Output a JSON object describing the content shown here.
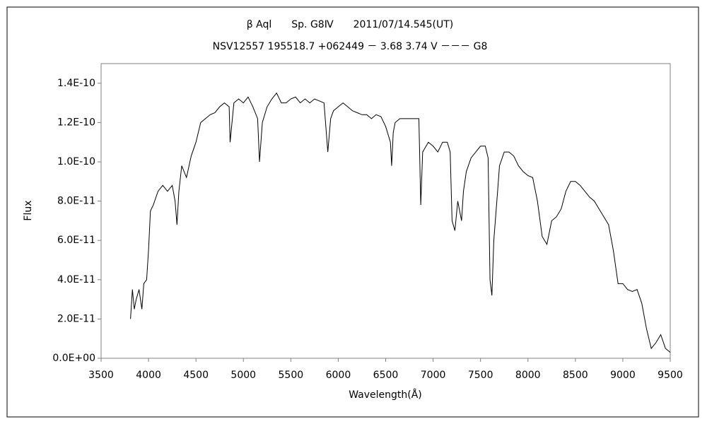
{
  "chart_data": {
    "type": "line",
    "title": "β Aql　　Sp. G8Ⅳ　　2011/07/14.545(UT)",
    "subtitle": "NSV12557 195518.7 +062449 － 3.68 3.74 V －－－ G8",
    "x_label": "Wavelength(Å)",
    "y_label": "Flux",
    "xlim": [
      3500,
      9500
    ],
    "xticks": [
      3500,
      4000,
      4500,
      5000,
      5500,
      6000,
      6500,
      7000,
      7500,
      8000,
      8500,
      9000,
      9500
    ],
    "ylim": [
      0,
      1.5e-10
    ],
    "yticks": [
      {
        "value": 0,
        "label": "0.0E+00"
      },
      {
        "value": 2e-11,
        "label": "2.0E-11"
      },
      {
        "value": 4e-11,
        "label": "4.0E-11"
      },
      {
        "value": 6e-11,
        "label": "6.0E-11"
      },
      {
        "value": 8e-11,
        "label": "8.0E-11"
      },
      {
        "value": 1e-10,
        "label": "1.0E-10"
      },
      {
        "value": 1.2e-10,
        "label": "1.2E-10"
      },
      {
        "value": 1.4e-10,
        "label": "1.4E-10"
      }
    ],
    "grid": false,
    "series": [
      {
        "color": "#000000",
        "x": [
          3810,
          3830,
          3850,
          3870,
          3900,
          3930,
          3950,
          3980,
          4000,
          4020,
          4050,
          4100,
          4150,
          4200,
          4250,
          4280,
          4300,
          4320,
          4350,
          4400,
          4450,
          4500,
          4550,
          4600,
          4650,
          4700,
          4750,
          4800,
          4850,
          4860,
          4900,
          4950,
          5000,
          5050,
          5100,
          5150,
          5170,
          5200,
          5250,
          5300,
          5350,
          5400,
          5450,
          5500,
          5550,
          5600,
          5650,
          5700,
          5750,
          5800,
          5850,
          5890,
          5920,
          5950,
          6000,
          6050,
          6100,
          6150,
          6200,
          6250,
          6300,
          6350,
          6400,
          6450,
          6500,
          6550,
          6563,
          6580,
          6600,
          6650,
          6700,
          6750,
          6800,
          6850,
          6870,
          6890,
          6950,
          7000,
          7050,
          7100,
          7150,
          7180,
          7200,
          7230,
          7260,
          7300,
          7320,
          7350,
          7400,
          7450,
          7500,
          7550,
          7580,
          7600,
          7620,
          7640,
          7680,
          7700,
          7750,
          7800,
          7850,
          7900,
          7950,
          8000,
          8050,
          8100,
          8150,
          8200,
          8250,
          8300,
          8350,
          8400,
          8450,
          8500,
          8550,
          8600,
          8650,
          8700,
          8750,
          8800,
          8850,
          8900,
          8950,
          9000,
          9050,
          9100,
          9150,
          9200,
          9250,
          9300,
          9350,
          9400,
          9450,
          9500
        ],
        "values": [
          2e-11,
          3.5e-11,
          2.5e-11,
          3e-11,
          3.5e-11,
          2.5e-11,
          3.8e-11,
          4e-11,
          5.5e-11,
          7.5e-11,
          7.8e-11,
          8.5e-11,
          8.8e-11,
          8.5e-11,
          8.8e-11,
          8e-11,
          6.8e-11,
          8.5e-11,
          9.8e-11,
          9.2e-11,
          1.03e-10,
          1.1e-10,
          1.2e-10,
          1.22e-10,
          1.24e-10,
          1.25e-10,
          1.28e-10,
          1.3e-10,
          1.28e-10,
          1.1e-10,
          1.3e-10,
          1.32e-10,
          1.3e-10,
          1.33e-10,
          1.28e-10,
          1.22e-10,
          1e-10,
          1.2e-10,
          1.28e-10,
          1.32e-10,
          1.35e-10,
          1.3e-10,
          1.3e-10,
          1.32e-10,
          1.33e-10,
          1.3e-10,
          1.32e-10,
          1.3e-10,
          1.32e-10,
          1.31e-10,
          1.3e-10,
          1.05e-10,
          1.22e-10,
          1.26e-10,
          1.28e-10,
          1.3e-10,
          1.28e-10,
          1.26e-10,
          1.25e-10,
          1.24e-10,
          1.24e-10,
          1.22e-10,
          1.24e-10,
          1.23e-10,
          1.18e-10,
          1.1e-10,
          9.8e-11,
          1.15e-10,
          1.2e-10,
          1.22e-10,
          1.22e-10,
          1.22e-10,
          1.22e-10,
          1.22e-10,
          7.8e-11,
          1.05e-10,
          1.1e-10,
          1.08e-10,
          1.05e-10,
          1.1e-10,
          1.1e-10,
          1.05e-10,
          7e-11,
          6.5e-11,
          8e-11,
          7e-11,
          8.5e-11,
          9.5e-11,
          1.02e-10,
          1.05e-10,
          1.08e-10,
          1.08e-10,
          1.02e-10,
          4e-11,
          3.2e-11,
          6e-11,
          8.5e-11,
          9.8e-11,
          1.05e-10,
          1.05e-10,
          1.03e-10,
          9.8e-11,
          9.5e-11,
          9.3e-11,
          9.2e-11,
          8e-11,
          6.2e-11,
          5.8e-11,
          7e-11,
          7.2e-11,
          7.6e-11,
          8.5e-11,
          9e-11,
          9e-11,
          8.8e-11,
          8.5e-11,
          8.2e-11,
          8e-11,
          7.6e-11,
          7.2e-11,
          6.8e-11,
          5.5e-11,
          3.8e-11,
          3.8e-11,
          3.5e-11,
          3.4e-11,
          3.5e-11,
          2.8e-11,
          1.5e-11,
          5e-12,
          8e-12,
          1.2e-11,
          5e-12,
          3e-12
        ]
      }
    ]
  }
}
